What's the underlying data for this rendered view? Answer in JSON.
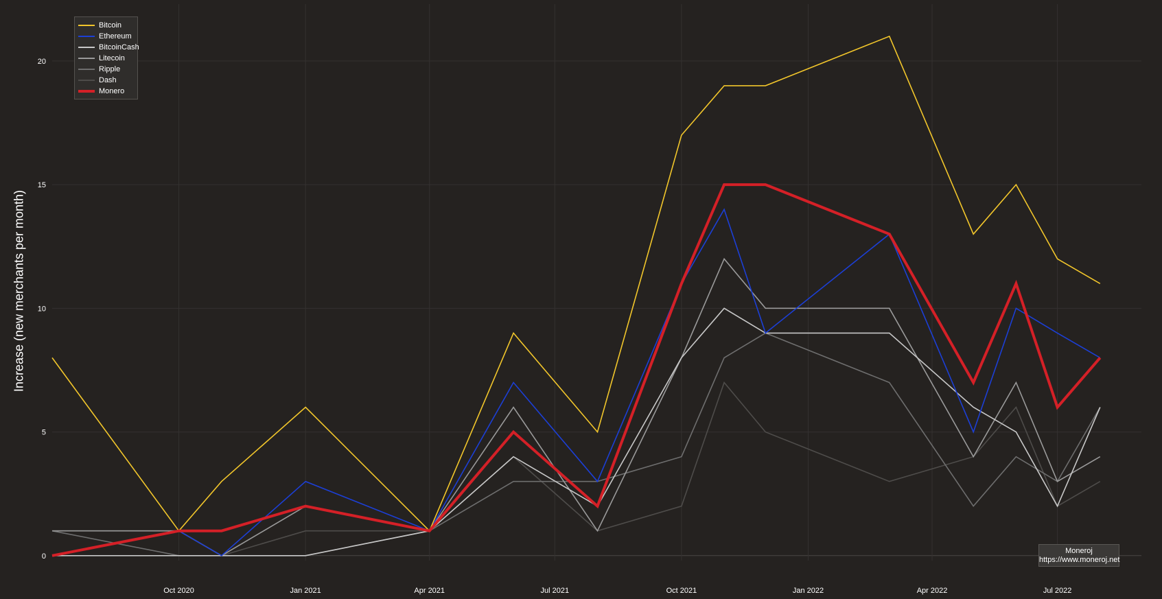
{
  "chart_data": {
    "type": "line",
    "ylabel": "Increase (new merchants per month)",
    "xlabel": "",
    "ylim": [
      -0.2,
      22.3
    ],
    "xlim": [
      "2020-07-01",
      "2022-08-31"
    ],
    "grid": true,
    "legend_position": "top-left",
    "x": [
      "2020-07-01",
      "2020-10-01",
      "2020-11-01",
      "2021-01-01",
      "2021-04-01",
      "2021-06-01",
      "2021-08-01",
      "2021-10-01",
      "2021-11-01",
      "2021-12-01",
      "2022-03-01",
      "2022-05-01",
      "2022-06-01",
      "2022-07-01",
      "2022-08-01"
    ],
    "x_ticks": [
      {
        "date": "2020-10-01",
        "label": "Oct 2020"
      },
      {
        "date": "2021-01-01",
        "label": "Jan 2021"
      },
      {
        "date": "2021-04-01",
        "label": "Apr 2021"
      },
      {
        "date": "2021-07-01",
        "label": "Jul 2021"
      },
      {
        "date": "2021-10-01",
        "label": "Oct 2021"
      },
      {
        "date": "2022-01-01",
        "label": "Jan 2022"
      },
      {
        "date": "2022-04-01",
        "label": "Apr 2022"
      },
      {
        "date": "2022-07-01",
        "label": "Jul 2022"
      }
    ],
    "y_ticks": [
      0,
      5,
      10,
      15,
      20
    ],
    "series": [
      {
        "name": "Bitcoin",
        "color": "#f2c62b",
        "values": [
          8,
          1,
          3,
          6,
          1,
          9,
          5,
          17,
          19,
          19,
          21,
          13,
          15,
          12,
          11
        ]
      },
      {
        "name": "Ethereum",
        "color": "#1c3fd6",
        "values": [
          0,
          1,
          0,
          3,
          1,
          7,
          3,
          11,
          14,
          9,
          13,
          5,
          10,
          9,
          8
        ]
      },
      {
        "name": "BitcoinCash",
        "color": "#c8c8c8",
        "values": [
          0,
          0,
          0,
          0,
          1,
          4,
          2,
          8,
          10,
          9,
          9,
          6,
          5,
          2,
          6
        ]
      },
      {
        "name": "Litecoin",
        "color": "#9a9a9a",
        "values": [
          1,
          1,
          0,
          2,
          1,
          6,
          1,
          8,
          12,
          10,
          10,
          4,
          7,
          3,
          4
        ]
      },
      {
        "name": "Ripple",
        "color": "#6e6e6e",
        "values": [
          1,
          0,
          0,
          0,
          1,
          3,
          3,
          4,
          8,
          9,
          7,
          2,
          4,
          3,
          6
        ]
      },
      {
        "name": "Dash",
        "color": "#4e4c4a",
        "values": [
          1,
          1,
          0,
          1,
          1,
          4,
          1,
          2,
          7,
          5,
          3,
          4,
          6,
          2,
          3
        ]
      },
      {
        "name": "Monero",
        "color": "#d42027",
        "values": [
          0,
          1,
          1,
          2,
          1,
          5,
          2,
          11,
          15,
          15,
          13,
          7,
          11,
          6,
          8
        ]
      }
    ]
  },
  "credit": {
    "line1": "Moneroj",
    "line2": "https://www.moneroj.net"
  }
}
